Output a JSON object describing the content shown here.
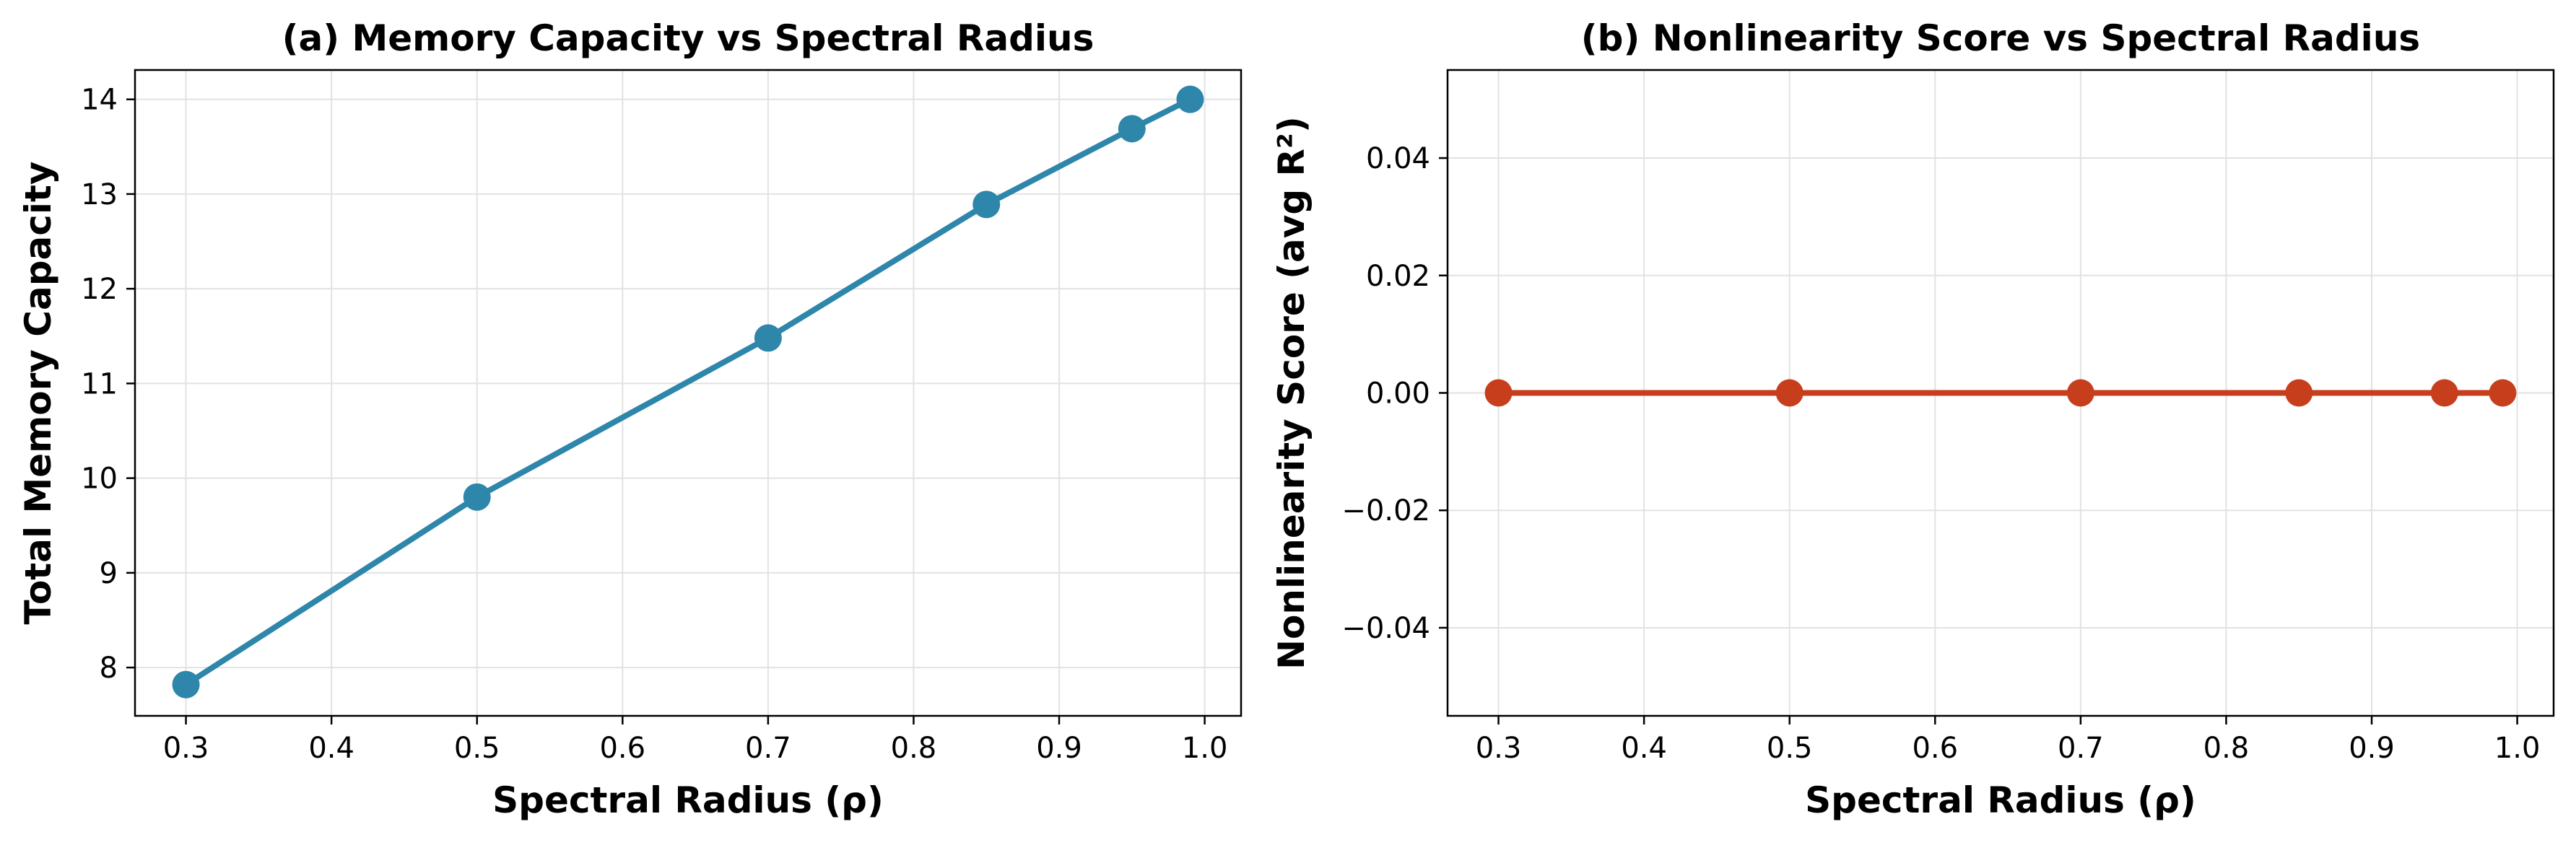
{
  "chart_data": [
    {
      "type": "line",
      "title": "(a) Memory Capacity vs Spectral Radius",
      "xlabel": "Spectral Radius (ρ)",
      "ylabel": "Total Memory Capacity",
      "xlim": [
        0.265,
        1.025
      ],
      "ylim": [
        7.49,
        14.31
      ],
      "xticks": [
        0.3,
        0.4,
        0.5,
        0.6,
        0.7,
        0.8,
        0.9,
        1.0
      ],
      "xtick_labels": [
        "0.3",
        "0.4",
        "0.5",
        "0.6",
        "0.7",
        "0.8",
        "0.9",
        "1.0"
      ],
      "yticks": [
        8,
        9,
        10,
        11,
        12,
        13,
        14
      ],
      "ytick_labels": [
        "8",
        "9",
        "10",
        "11",
        "12",
        "13",
        "14"
      ],
      "grid": true,
      "color": "#2e86ab",
      "series": [
        {
          "x": [
            0.3,
            0.5,
            0.7,
            0.85,
            0.95,
            0.99
          ],
          "y": [
            7.82,
            9.8,
            11.48,
            12.89,
            13.69,
            14.0
          ]
        }
      ]
    },
    {
      "type": "line",
      "title": "(b) Nonlinearity Score vs Spectral Radius",
      "xlabel": "Spectral Radius (ρ)",
      "ylabel": "Nonlinearity Score (avg R²)",
      "xlim": [
        0.265,
        1.025
      ],
      "ylim": [
        -0.055,
        0.055
      ],
      "xticks": [
        0.3,
        0.4,
        0.5,
        0.6,
        0.7,
        0.8,
        0.9,
        1.0
      ],
      "xtick_labels": [
        "0.3",
        "0.4",
        "0.5",
        "0.6",
        "0.7",
        "0.8",
        "0.9",
        "1.0"
      ],
      "yticks": [
        -0.04,
        -0.02,
        0.0,
        0.02,
        0.04
      ],
      "ytick_labels": [
        "−0.04",
        "−0.02",
        "0.00",
        "0.02",
        "0.04"
      ],
      "grid": true,
      "color": "#c73e1d",
      "series": [
        {
          "x": [
            0.3,
            0.5,
            0.7,
            0.85,
            0.95,
            0.99
          ],
          "y": [
            0.0,
            0.0,
            0.0,
            0.0,
            0.0,
            0.0
          ]
        }
      ]
    }
  ]
}
